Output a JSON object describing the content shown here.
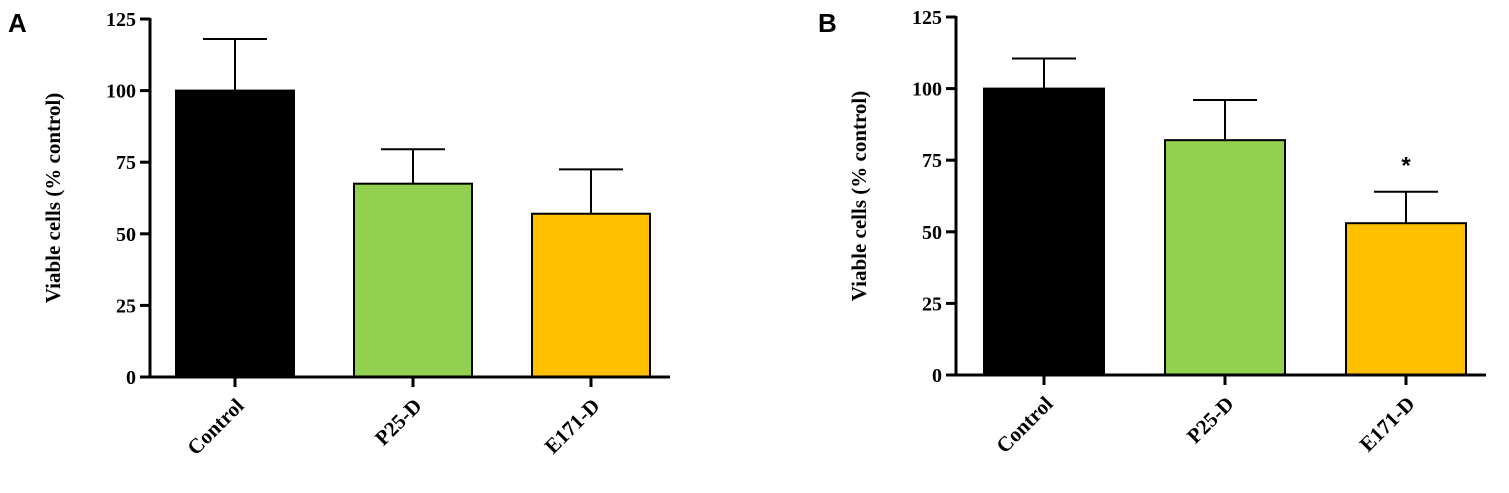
{
  "chart_data": [
    {
      "panel": "A",
      "type": "bar",
      "categories": [
        "Control",
        "P25-D",
        "E171-D"
      ],
      "values": [
        100,
        67.5,
        57
      ],
      "errors": [
        18,
        12,
        15.5
      ],
      "colors": [
        "#000000",
        "#92d050",
        "#ffc000"
      ],
      "ylabel": "Viable cells (% control)",
      "ylim": [
        0,
        125
      ],
      "yticks": [
        "0",
        "25",
        "50",
        "75",
        "100",
        "125"
      ],
      "annotations": [
        "",
        "",
        ""
      ]
    },
    {
      "panel": "B",
      "type": "bar",
      "categories": [
        "Control",
        "P25-D",
        "E171-D"
      ],
      "values": [
        100,
        82,
        53
      ],
      "errors": [
        10.5,
        14,
        11
      ],
      "colors": [
        "#000000",
        "#92d050",
        "#ffc000"
      ],
      "ylabel": "Viable cells (% control)",
      "ylim": [
        0,
        125
      ],
      "yticks": [
        "0",
        "25",
        "50",
        "75",
        "100",
        "125"
      ],
      "annotations": [
        "",
        "",
        "*"
      ]
    }
  ]
}
